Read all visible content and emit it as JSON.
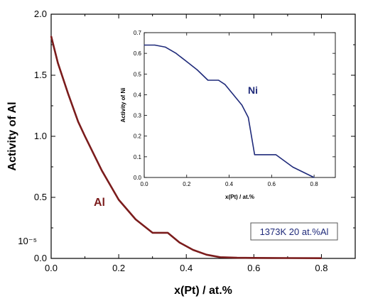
{
  "chart_data": [
    {
      "type": "line",
      "xlabel": "x(Pt) / at.%",
      "ylabel": "Activity of Al",
      "xlim": [
        0.0,
        0.9
      ],
      "ylim": [
        0.0,
        2.0
      ],
      "x_ticks": [
        "0.0",
        "0.2",
        "0.4",
        "0.6",
        "0.8"
      ],
      "y_ticks": [
        "0.0",
        "0.5",
        "1.0",
        "1.5",
        "2.0"
      ],
      "y_scale_note": "10⁻⁵",
      "series": [
        {
          "name": "Al",
          "color": "#7b1c1c",
          "x": [
            0.0,
            0.02,
            0.05,
            0.08,
            0.1,
            0.15,
            0.2,
            0.25,
            0.3,
            0.345,
            0.38,
            0.42,
            0.46,
            0.5,
            0.55,
            0.6,
            0.7,
            0.8
          ],
          "y": [
            1.82,
            1.6,
            1.35,
            1.12,
            1.0,
            0.72,
            0.48,
            0.32,
            0.21,
            0.21,
            0.13,
            0.07,
            0.03,
            0.01,
            0.005,
            0.004,
            0.003,
            0.002
          ]
        }
      ],
      "annotation": "1373K 20 at.%Al"
    },
    {
      "type": "line",
      "xlabel": "x(Pt) / at.%",
      "ylabel": "Activity of Ni",
      "xlim": [
        0.0,
        0.9
      ],
      "ylim": [
        0.0,
        0.7
      ],
      "x_ticks": [
        "0.0",
        "0.2",
        "0.4",
        "0.6",
        "0.8"
      ],
      "y_ticks": [
        "0.0",
        "0.1",
        "0.2",
        "0.3",
        "0.4",
        "0.5",
        "0.6",
        "0.7"
      ],
      "series": [
        {
          "name": "Ni",
          "color": "#1f2a7a",
          "x": [
            0.0,
            0.05,
            0.1,
            0.15,
            0.2,
            0.25,
            0.3,
            0.35,
            0.38,
            0.42,
            0.46,
            0.49,
            0.52,
            0.62,
            0.7,
            0.8
          ],
          "y": [
            0.64,
            0.64,
            0.63,
            0.6,
            0.56,
            0.52,
            0.47,
            0.47,
            0.45,
            0.4,
            0.35,
            0.29,
            0.11,
            0.11,
            0.05,
            0.0
          ]
        }
      ]
    }
  ]
}
